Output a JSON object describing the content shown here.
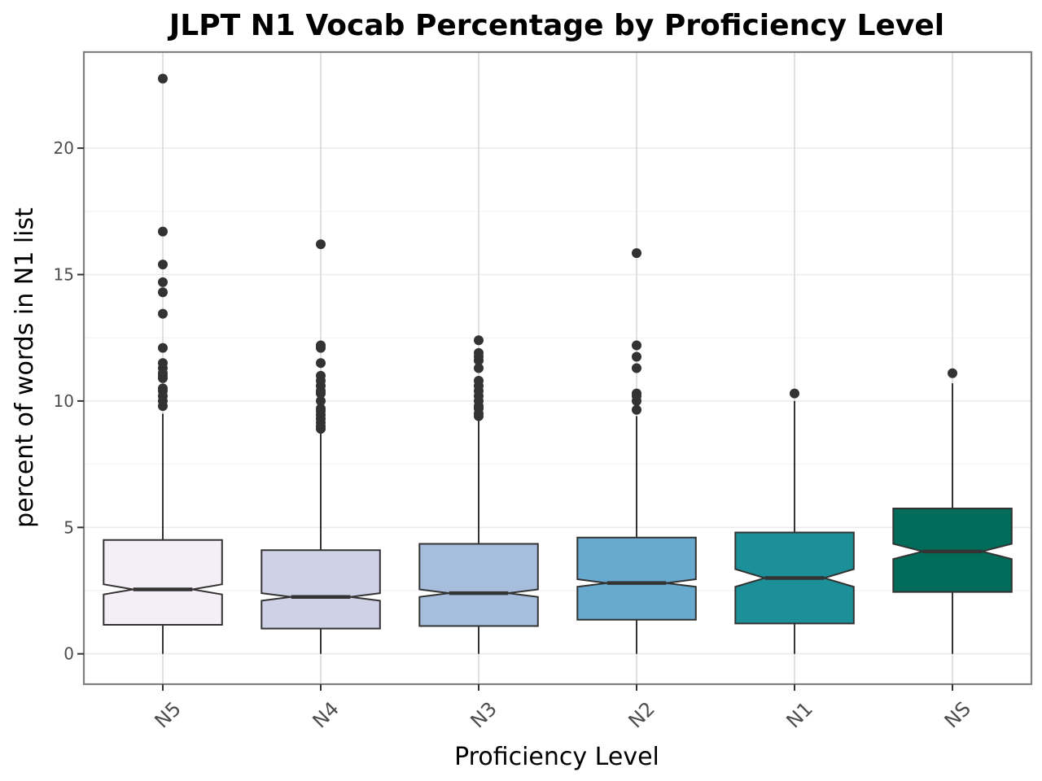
{
  "chart_data": {
    "type": "boxplot",
    "notched": true,
    "title": "JLPT N1 Vocab Percentage by Proficiency Level",
    "xlabel": "Proficiency Level",
    "ylabel": "percent of words in N1 list",
    "ylim": [
      -1.2,
      23.8
    ],
    "yticks": [
      0,
      5,
      10,
      15,
      20
    ],
    "grid": true,
    "legend": "none",
    "categories": [
      "N5",
      "N4",
      "N3",
      "N2",
      "N1",
      "NS"
    ],
    "boxes": [
      {
        "category": "N5",
        "q1": 1.15,
        "median": 2.55,
        "q3": 4.5,
        "notch_low": 2.35,
        "notch_high": 2.75,
        "whisker_low": 0.0,
        "whisker_high": 9.5,
        "fill": "#f4eef7",
        "outliers": [
          9.8,
          10.0,
          10.2,
          10.4,
          10.5,
          10.9,
          11.0,
          11.1,
          11.3,
          11.5,
          12.1,
          13.45,
          14.3,
          14.7,
          15.4,
          16.7,
          22.75
        ]
      },
      {
        "category": "N4",
        "q1": 1.0,
        "median": 2.25,
        "q3": 4.1,
        "notch_low": 2.1,
        "notch_high": 2.4,
        "whisker_low": 0.0,
        "whisker_high": 8.8,
        "fill": "#cfd1e6",
        "outliers": [
          8.9,
          9.0,
          9.15,
          9.3,
          9.45,
          9.6,
          9.7,
          10.0,
          10.3,
          10.4,
          10.6,
          10.8,
          11.0,
          11.5,
          12.1,
          12.2,
          16.2
        ]
      },
      {
        "category": "N3",
        "q1": 1.1,
        "median": 2.4,
        "q3": 4.35,
        "notch_low": 2.25,
        "notch_high": 2.55,
        "whisker_low": 0.0,
        "whisker_high": 9.3,
        "fill": "#a6bddb",
        "outliers": [
          9.4,
          9.5,
          9.7,
          9.8,
          10.0,
          10.2,
          10.4,
          10.6,
          10.8,
          11.3,
          11.6,
          11.75,
          11.9,
          12.4
        ]
      },
      {
        "category": "N2",
        "q1": 1.35,
        "median": 2.8,
        "q3": 4.6,
        "notch_low": 2.65,
        "notch_high": 2.95,
        "whisker_low": 0.0,
        "whisker_high": 9.4,
        "fill": "#67a9cf",
        "outliers": [
          9.65,
          10.0,
          10.2,
          10.3,
          11.3,
          11.75,
          12.2,
          15.85
        ]
      },
      {
        "category": "N1",
        "q1": 1.2,
        "median": 3.0,
        "q3": 4.8,
        "notch_low": 2.65,
        "notch_high": 3.35,
        "whisker_low": 0.0,
        "whisker_high": 10.0,
        "fill": "#1c9099",
        "outliers": [
          10.3
        ]
      },
      {
        "category": "NS",
        "q1": 2.45,
        "median": 4.05,
        "q3": 5.75,
        "notch_low": 3.75,
        "notch_high": 4.35,
        "whisker_low": 0.0,
        "whisker_high": 10.7,
        "fill": "#016c59",
        "outliers": [
          11.1
        ]
      }
    ]
  }
}
